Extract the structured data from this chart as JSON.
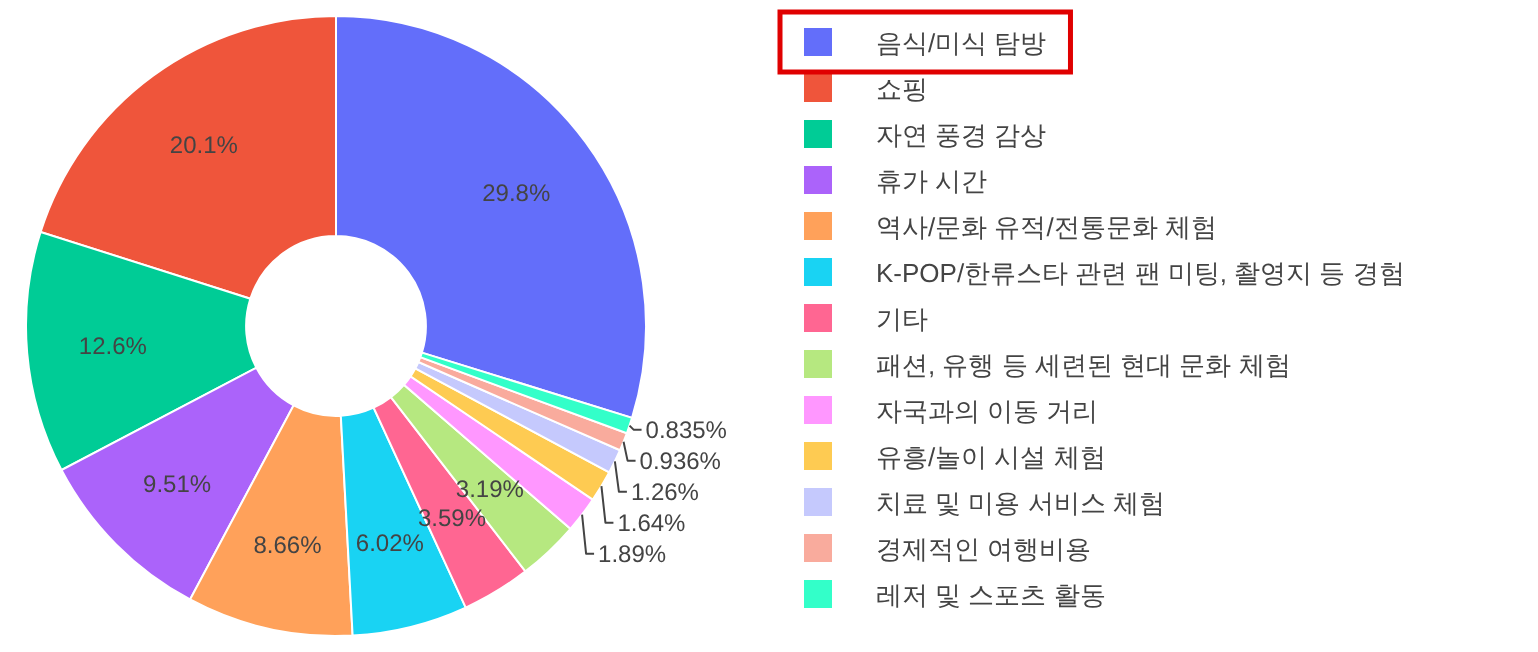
{
  "chart_data": {
    "type": "donut",
    "categories": [
      "음식/미식 탐방",
      "쇼핑",
      "자연 풍경 감상",
      "휴가 시간",
      "역사/문화 유적/전통문화 체험",
      "K-POP/한류스타 관련 팬 미팅, 촬영지 등 경험",
      "기타",
      "패션, 유행 등 세련된 현대 문화 체험",
      "자국과의 이동 거리",
      "유흥/놀이 시설 체험",
      "치료 및 미용 서비스 체험",
      "경제적인 여행비용",
      "레저 및 스포츠 활동"
    ],
    "values": [
      29.8,
      20.1,
      12.6,
      9.51,
      8.66,
      6.02,
      3.59,
      3.19,
      1.89,
      1.64,
      1.26,
      0.936,
      0.835
    ],
    "colors": [
      "#636efa",
      "#ef553b",
      "#00cc96",
      "#ab63fa",
      "#ffa15a",
      "#19d3f3",
      "#ff6692",
      "#b6e880",
      "#ff97ff",
      "#fecb52",
      "#c5c9fd",
      "#f9ab9d",
      "#33ffc9"
    ],
    "value_labels": [
      "29.8%",
      "20.1%",
      "12.6%",
      "9.51%",
      "8.66%",
      "6.02%",
      "3.59%",
      "3.19%",
      "1.89%",
      "1.64%",
      "1.26%",
      "0.936%",
      "0.835%"
    ],
    "legend": "right"
  }
}
